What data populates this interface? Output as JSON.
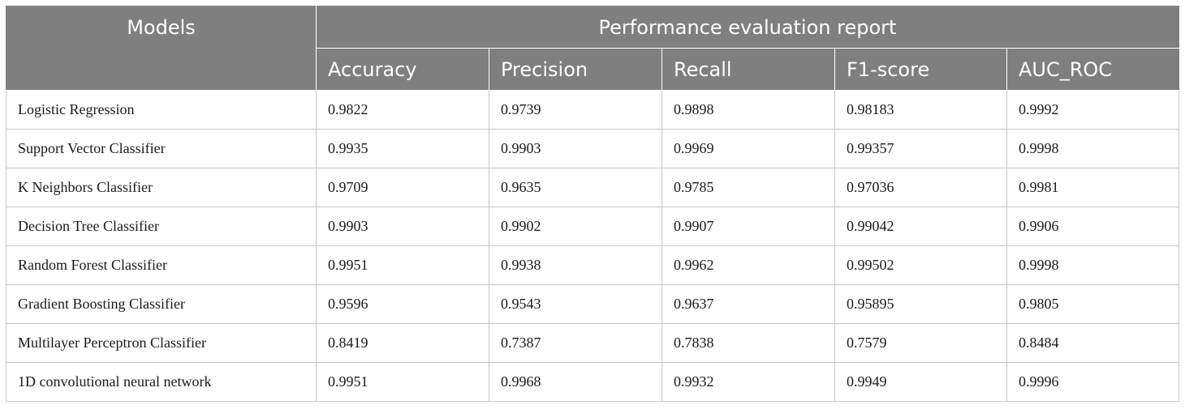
{
  "table": {
    "header": {
      "models": "Models",
      "group": "Performance evaluation report",
      "metrics": [
        "Accuracy",
        "Precision",
        "Recall",
        "F1-score",
        "AUC_ROC"
      ]
    },
    "rows": [
      [
        "Logistic Regression",
        "0.9822",
        "0.9739",
        "0.9898",
        "0.98183",
        "0.9992"
      ],
      [
        "Support Vector Classifier",
        "0.9935",
        "0.9903",
        "0.9969",
        "0.99357",
        "0.9998"
      ],
      [
        "K Neighbors Classifier",
        "0.9709",
        "0.9635",
        "0.9785",
        "0.97036",
        "0.9981"
      ],
      [
        "Decision Tree Classifier",
        "0.9903",
        "0.9902",
        "0.9907",
        "0.99042",
        "0.9906"
      ],
      [
        "Random Forest Classifier",
        "0.9951",
        "0.9938",
        "0.9962",
        "0.99502",
        "0.9998"
      ],
      [
        "Gradient Boosting Classifier",
        "0.9596",
        "0.9543",
        "0.9637",
        "0.95895",
        "0.9805"
      ],
      [
        "Multilayer Perceptron Classifier",
        "0.8419",
        "0.7387",
        "0.7838",
        "0.7579",
        "0.8484"
      ],
      [
        "1D convolutional neural network",
        "0.9951",
        "0.9968",
        "0.9932",
        "0.9949",
        "0.9996"
      ]
    ]
  }
}
